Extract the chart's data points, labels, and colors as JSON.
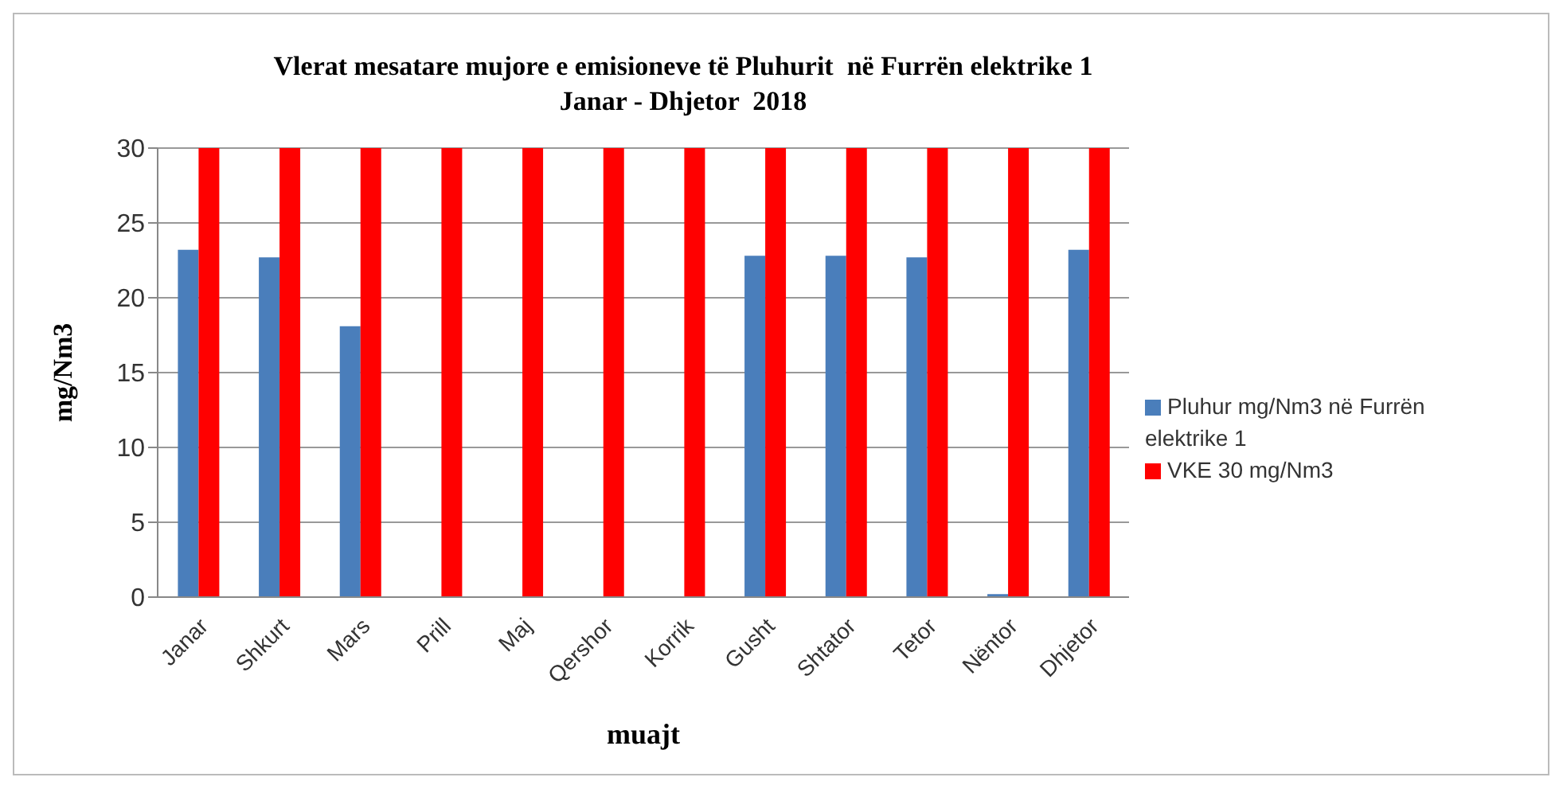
{
  "chart_data": {
    "type": "bar",
    "title": "Vlerat mesatare mujore e emisioneve të Pluhurit  në Furrën elektrike 1\nJanar - Dhjetor  2018",
    "xlabel": "muajt",
    "ylabel": "mg/Nm3",
    "categories": [
      "Janar",
      "Shkurt",
      "Mars",
      "Prill",
      "Maj",
      "Qershor",
      "Korrik",
      "Gusht",
      "Shtator",
      "Tetor",
      "Nëntor",
      "Dhjetor"
    ],
    "series": [
      {
        "name": "Pluhur mg/Nm3 në Furrën elektrike 1",
        "color": "#4a7ebb",
        "values": [
          23.2,
          22.7,
          18.1,
          null,
          null,
          null,
          null,
          22.8,
          22.8,
          22.7,
          0.2,
          23.2
        ]
      },
      {
        "name": "VKE 30 mg/Nm3",
        "color": "#ff0000",
        "values": [
          30,
          30,
          30,
          30,
          30,
          30,
          30,
          30,
          30,
          30,
          30,
          30
        ]
      }
    ],
    "ylim": [
      0,
      30
    ],
    "yticks": [
      0,
      5,
      10,
      15,
      20,
      25,
      30
    ],
    "grid": "y",
    "legend": "right"
  }
}
